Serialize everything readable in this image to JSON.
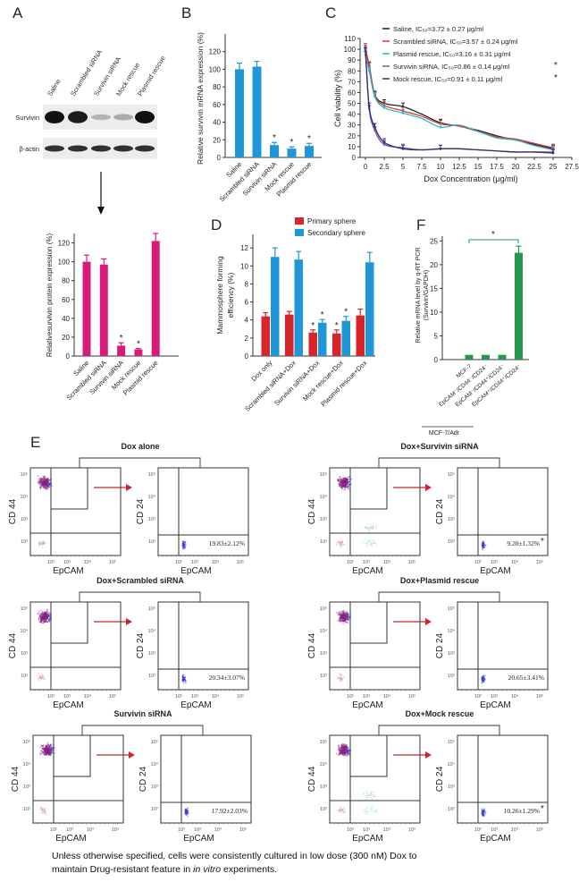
{
  "panel_letters": {
    "a": "A",
    "b": "B",
    "c": "C",
    "d": "D",
    "e": "E",
    "f": "F"
  },
  "colors": {
    "magenta": "#d81b7a",
    "blue": "#1f96d8",
    "red": "#d8252a",
    "green": "#22994a",
    "arrow": "#c9252b"
  },
  "panel_a_blot": {
    "lanes": [
      "Saline",
      "Scrambled siRNA",
      "Survivin siRNA",
      "Mock rescue",
      "Plasmid rescue"
    ],
    "rows": [
      {
        "label": "Survivin",
        "intensity": [
          1,
          0.95,
          0.25,
          0.3,
          1
        ]
      },
      {
        "label": "β-actin",
        "intensity": [
          0.85,
          0.85,
          0.85,
          0.85,
          0.85
        ]
      }
    ]
  },
  "chart_data": [
    {
      "id": "A-bar",
      "type": "bar",
      "categories": [
        "Saline",
        "Scrambled siRNA",
        "Survivin siRNA",
        "Mock rescue",
        "Plasmid rescue"
      ],
      "values": [
        100,
        97,
        11,
        7,
        122
      ],
      "errors": [
        7,
        6,
        3,
        1,
        8
      ],
      "significant": [
        false,
        false,
        true,
        true,
        false
      ],
      "star": "*",
      "ylabel": "Relativesurvivin protein expression (%)",
      "ylim": [
        0,
        130
      ],
      "yticks": [
        "0",
        "20",
        "40",
        "60",
        "80",
        "100",
        "120"
      ],
      "color": "#d81b7a"
    },
    {
      "id": "B",
      "type": "bar",
      "categories": [
        "Saline",
        "Scrambled siRNA",
        "Survivin siRNA",
        "Mock rescue",
        "Plasmid rescue"
      ],
      "values": [
        100,
        103,
        14,
        10,
        13
      ],
      "errors": [
        7,
        6,
        3,
        2,
        3
      ],
      "significant": [
        false,
        false,
        true,
        true,
        true
      ],
      "star": "*",
      "ylabel": "Relative survivin mRNA expression (%)",
      "ylim": [
        0,
        140
      ],
      "yticks": [
        "0",
        "20",
        "40",
        "60",
        "80",
        "100",
        "120"
      ],
      "color": "#1f96d8"
    },
    {
      "id": "C",
      "type": "line",
      "xlabel": "Dox Concentration (μg/ml)",
      "ylabel": "Cell viability (%)",
      "xlim": [
        0,
        27.5
      ],
      "ylim": [
        0,
        110
      ],
      "xticks": [
        "0",
        "2.5",
        "5",
        "7.5",
        "10",
        "12.5",
        "15",
        "17.5",
        "20",
        "22.5",
        "25",
        "27.5"
      ],
      "yticks": [
        "0",
        "10",
        "20",
        "30",
        "40",
        "50",
        "60",
        "70",
        "80",
        "90",
        "100",
        "110"
      ],
      "x": [
        0,
        0.5,
        1.25,
        2.5,
        5,
        7.5,
        10,
        12.5,
        15,
        17.5,
        20,
        22.5,
        25
      ],
      "error_x": [
        0,
        0.5,
        1.25,
        2.5,
        5,
        10,
        25
      ],
      "series": [
        {
          "name": "Saline, IC₅₀=3.72 ± 0.27 μg/ml",
          "star": "",
          "color": "#222222",
          "values": [
            100,
            85,
            58,
            50,
            47,
            40,
            32,
            29,
            25,
            20,
            16,
            12,
            8
          ]
        },
        {
          "name": "Scrambled siRNA, IC₅₀=3.57 ± 0.24 μg/ml",
          "star": "",
          "color": "#d33a3a",
          "values": [
            102,
            84,
            57,
            48,
            43,
            38,
            31,
            29,
            24,
            19,
            17,
            13,
            9
          ]
        },
        {
          "name": "Plasmid rescue, IC₅₀=3.16 ± 0.31 μg/ml",
          "star": "",
          "color": "#35b6c6",
          "values": [
            95,
            80,
            56,
            46,
            41,
            36,
            28,
            30,
            24,
            18,
            16,
            11,
            7
          ]
        },
        {
          "name": "Survivin siRNA, IC₅₀=0.86 ± 0.14 μg/ml",
          "star": "*",
          "color": "#7a55b0",
          "values": [
            100,
            45,
            25,
            12,
            9,
            7,
            8,
            8,
            7,
            6,
            5,
            5,
            5
          ]
        },
        {
          "name": "Mock rescue, IC₅₀=0.91 ± 0.11 μg/ml",
          "star": "*",
          "color": "#3b2a6e",
          "values": [
            98,
            47,
            28,
            14,
            8,
            7,
            8,
            8,
            7,
            6,
            5,
            5,
            4
          ]
        }
      ],
      "legend": "top-right"
    },
    {
      "id": "D",
      "type": "bar",
      "categories": [
        "Dox only",
        "Scrambled siRNA+Dox",
        "Survivin siRNA+Dox",
        "Mock rescue+Dox",
        "Plasmid rescue+Dox"
      ],
      "series": [
        {
          "name": "Primary sphere",
          "color": "#d8252a",
          "values": [
            4.4,
            4.6,
            2.6,
            2.5,
            4.5
          ],
          "errors": [
            0.4,
            0.35,
            0.3,
            0.4,
            0.7
          ],
          "significant": [
            false,
            false,
            true,
            true,
            false
          ]
        },
        {
          "name": "Secondary sphere",
          "color": "#1f96d8",
          "values": [
            11.0,
            10.7,
            3.7,
            3.9,
            10.4
          ],
          "errors": [
            1.0,
            0.9,
            0.35,
            0.5,
            1.1
          ],
          "significant": [
            false,
            false,
            true,
            true,
            false
          ]
        }
      ],
      "star": "*",
      "ylabel_lines": [
        "Mammosphere forming",
        "efficiency (%)"
      ],
      "ylim": [
        0,
        13.5
      ],
      "yticks": [
        "0",
        "2",
        "4",
        "6",
        "8",
        "10",
        "12"
      ],
      "legend": "top"
    },
    {
      "id": "F",
      "type": "bar",
      "categories": [
        "MCF-7",
        "EpCAM⁻/CD44⁻/CD24⁻",
        "EpCAM⁻/CD44⁺/CD24⁻",
        "EpCAM⁺/CD44⁺/CD24⁻"
      ],
      "group_label": "MCF-7/Adr",
      "values": [
        1,
        1,
        1,
        22.5
      ],
      "errors": [
        0,
        0,
        0,
        1.4
      ],
      "comparison_star": "*",
      "ylabel_lines": [
        "Relative mRNA level by q-RT PCR",
        "(Survivin/GAPDH)"
      ],
      "ylim": [
        0,
        26
      ],
      "yticks": [
        "0",
        "5",
        "10",
        "15",
        "20",
        "25"
      ],
      "color": "#22994a"
    }
  ],
  "panel_e": {
    "axis": {
      "cd44": "CD 44",
      "cd24": "CD 24",
      "epcam": "EpCAM"
    },
    "ticks": [
      "10²",
      "10³",
      "10⁴",
      "10⁵"
    ],
    "panels": [
      {
        "title": "Dox alone",
        "percent": "19.83±2.12%",
        "star": "",
        "low_cd44_population": false
      },
      {
        "title": "Dox+Survivin siRNA",
        "percent": "9.20±1.32%",
        "star": "*",
        "low_cd44_population": true
      },
      {
        "title": "Dox+Scrambled siRNA",
        "percent": "20.34±3.07%",
        "star": "",
        "low_cd44_population": false
      },
      {
        "title": "Dox+Plasmid rescue",
        "percent": "20.65±3.41%",
        "star": "",
        "low_cd44_population": false
      },
      {
        "title": "Survivin siRNA",
        "percent": "17.92±2.03%",
        "star": "",
        "low_cd44_population": false
      },
      {
        "title": "Dox+Mock rescue",
        "percent": "10.26±1.29%",
        "star": "*",
        "low_cd44_population": true
      }
    ]
  },
  "footnote": {
    "line1": "Unless otherwise specified, cells were consistently cultured in low dose (300 nM) Dox to",
    "line2_pre": "maintain Drug-resistant feature in ",
    "line2_italic": "in vitro",
    "line2_post": " experiments."
  }
}
